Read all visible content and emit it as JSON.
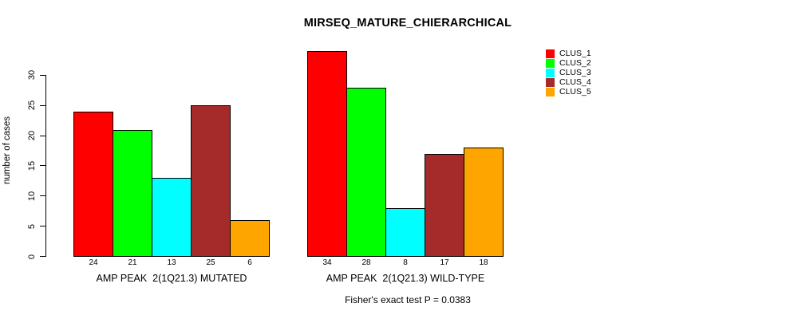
{
  "chart_data": {
    "type": "bar",
    "title": "MIRSEQ_MATURE_CHIERARCHICAL",
    "ylabel": "number of cases",
    "annotation": "Fisher's exact test P = 0.0383",
    "categories": [
      "AMP PEAK  2(1Q21.3) MUTATED",
      "AMP PEAK  2(1Q21.3) WILD-TYPE"
    ],
    "series": [
      {
        "name": "CLUS_1",
        "color": "#FF0000",
        "values": [
          24,
          34
        ]
      },
      {
        "name": "CLUS_2",
        "color": "#00FF00",
        "values": [
          21,
          28
        ]
      },
      {
        "name": "CLUS_3",
        "color": "#00FFFF",
        "values": [
          13,
          8
        ]
      },
      {
        "name": "CLUS_4",
        "color": "#A52A2A",
        "values": [
          25,
          17
        ]
      },
      {
        "name": "CLUS_5",
        "color": "#FFA500",
        "values": [
          6,
          18
        ]
      }
    ],
    "yticks": [
      0,
      5,
      10,
      15,
      20,
      25,
      30
    ],
    "ylim": [
      0,
      34
    ],
    "bar_value_labels": true,
    "legend_position": "right",
    "grid": false,
    "background": "#ffffff",
    "text_color": "#000000"
  }
}
